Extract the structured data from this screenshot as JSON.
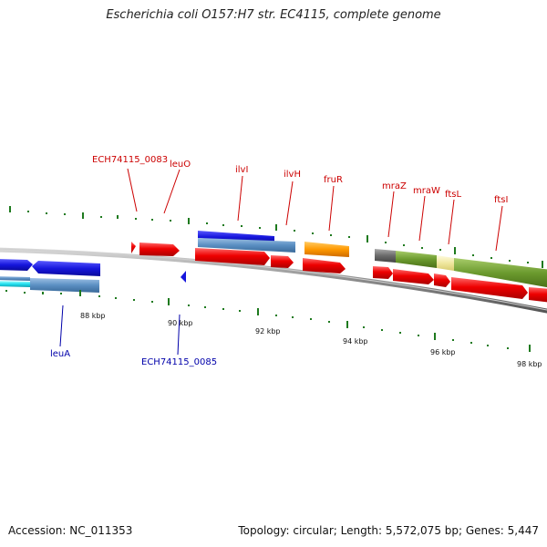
{
  "title": "Escherichia coli O157:H7 str. EC4115, complete genome",
  "footer": {
    "accession": "Accession: NC_011353",
    "topology": "Topology: circular; Length: 5,572,075 bp; Genes: 5,447"
  },
  "ticks": [
    {
      "label": "88 kbp"
    },
    {
      "label": "90 kbp"
    },
    {
      "label": "92 kbp"
    },
    {
      "label": "94 kbp"
    },
    {
      "label": "96 kbp"
    },
    {
      "label": "98 kbp"
    }
  ],
  "genes_forward": [
    "ECH74115_0083",
    "leuO",
    "ilvI",
    "ilvH",
    "fruR",
    "mraZ",
    "mraW",
    "ftsL",
    "ftsI"
  ],
  "genes_reverse": [
    "leuA",
    "ECH74115_0085"
  ],
  "colors": {
    "forward_label": "#cc0000",
    "reverse_label": "#0000aa",
    "cds": "#ee0000",
    "backbone": "#8a8a8a",
    "tick_green": "#1e7a1e",
    "blue_feature": "#1616dd",
    "steel_feature": "#5a8ec2",
    "cyan_feature": "#22e0f0",
    "orange_feature": "#ff9900",
    "olive_feature": "#6b9a2e",
    "gray_feature": "#6a6a6a",
    "pale_feature": "#f0e8a0"
  }
}
